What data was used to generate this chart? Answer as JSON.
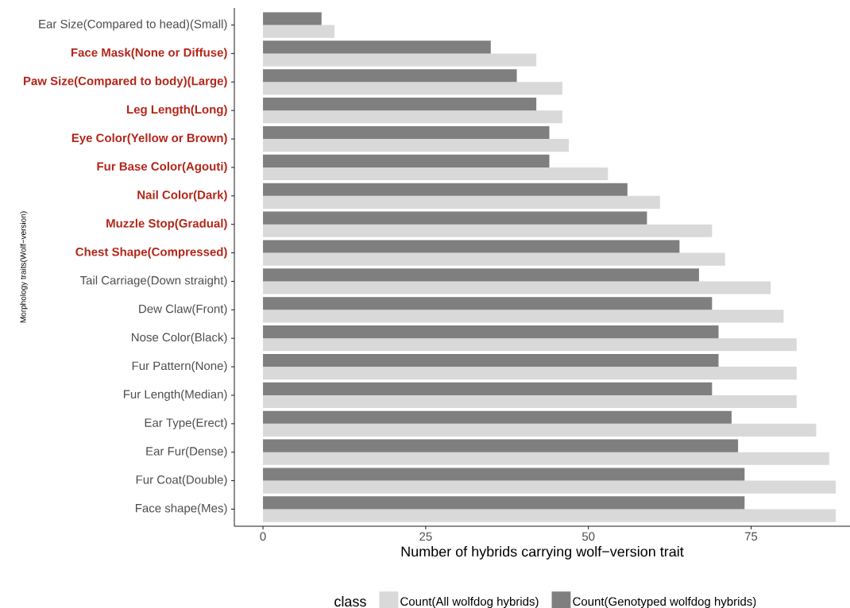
{
  "chart_data": {
    "type": "bar",
    "orientation": "horizontal",
    "xlabel": "Number of hybrids carrying wolf−version trait",
    "ylabel": "Morphology traits(Wolf−version)",
    "legend_title": "class",
    "legend": "bottom",
    "categories": [
      "Ear Size(Compared to head)(Small)",
      "**Face Mask(None or Diffuse)**",
      "**Paw Size(Compared to body)(Large)**",
      "**Leg Length(Long)**",
      "**Eye Color(Yellow or Brown)**",
      "**Fur Base Color(Agouti)**",
      "**Nail Color(Dark)**",
      "**Muzzle Stop(Gradual)**",
      "**Chest Shape(Compressed)**",
      "Tail Carriage(Down straight)",
      "Dew Claw(Front)",
      "Nose Color(Black)",
      "Fur Pattern(None)",
      "Fur Length(Median)",
      "Ear Type(Erect)",
      "Ear Fur(Dense)",
      "Fur Coat(Double)",
      "Face shape(Mes)"
    ],
    "series": [
      {
        "name": "Count(All wolfdog hybrids)",
        "color": "#d9d9d9",
        "values": [
          11,
          42,
          46,
          46,
          47,
          53,
          61,
          69,
          71,
          78,
          80,
          82,
          82,
          82,
          85,
          87,
          88,
          88
        ]
      },
      {
        "name": "Count(Genotyped wolfdog hybrids)",
        "color": "#7f7f7f",
        "values": [
          9,
          35,
          39,
          42,
          44,
          44,
          56,
          59,
          64,
          67,
          69,
          70,
          70,
          69,
          72,
          73,
          74,
          74
        ]
      }
    ],
    "xlim": [
      -4.4,
      90.2
    ],
    "xticks": [
      0,
      25,
      50,
      75
    ]
  }
}
